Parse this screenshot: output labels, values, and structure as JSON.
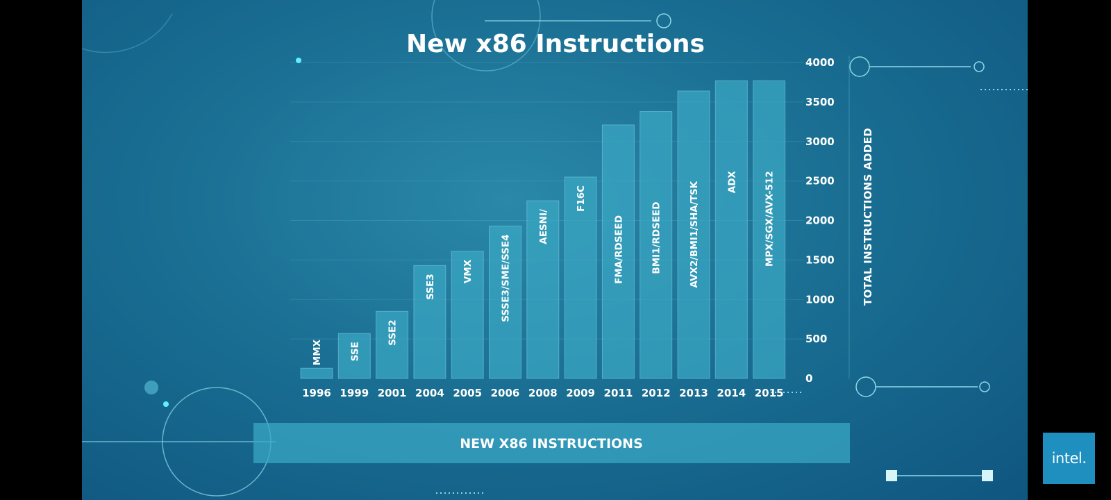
{
  "chart_data": {
    "type": "bar",
    "title": "New x86 Instructions",
    "categories": [
      "1996",
      "1999",
      "2001",
      "2004",
      "2005",
      "2006",
      "2008",
      "2009",
      "2011",
      "2012",
      "2013",
      "2014",
      "2015"
    ],
    "bar_labels": [
      "MMX",
      "SSE",
      "SSE2",
      "SSE3",
      "VMX",
      "SSSE3/SME/SSE4",
      "AESNI/",
      "F16C",
      "FMA/RDSEED",
      "BMI1/RDSEED",
      "AVX2/BMI1/SHA/TSK",
      "ADX",
      "MPX/SGX/AVX-512"
    ],
    "values": [
      130,
      570,
      850,
      1430,
      1610,
      1930,
      2250,
      2550,
      3210,
      3380,
      3640,
      3770,
      3770
    ],
    "ylabel": "TOTAL INSTRUCTIONS ADDED",
    "ylim": [
      0,
      4000
    ],
    "yticks": [
      0,
      500,
      1000,
      1500,
      2000,
      2500,
      3000,
      3500,
      4000
    ],
    "axis_position": "right",
    "grid": true,
    "legend": "NEW X86 INSTRUCTIONS",
    "bar_color": "#3aa7c4"
  },
  "logo": {
    "name": "intel-logo",
    "text": "intel."
  }
}
